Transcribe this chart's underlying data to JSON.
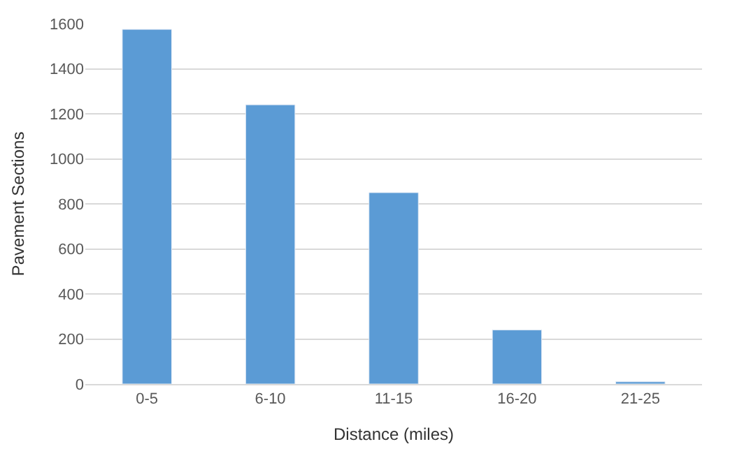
{
  "chart_data": {
    "type": "bar",
    "xlabel": "Distance (miles)",
    "ylabel": "Pavement Sections",
    "categories": [
      "0-5",
      "6-10",
      "11-15",
      "16-20",
      "21-25"
    ],
    "values": [
      1575,
      1240,
      850,
      240,
      10
    ],
    "color": "#5b9bd5",
    "ylim": [
      0,
      1600
    ],
    "yticks": [
      0,
      200,
      400,
      600,
      800,
      1000,
      1200,
      1400,
      1600
    ],
    "grid": "y",
    "legend": false
  }
}
